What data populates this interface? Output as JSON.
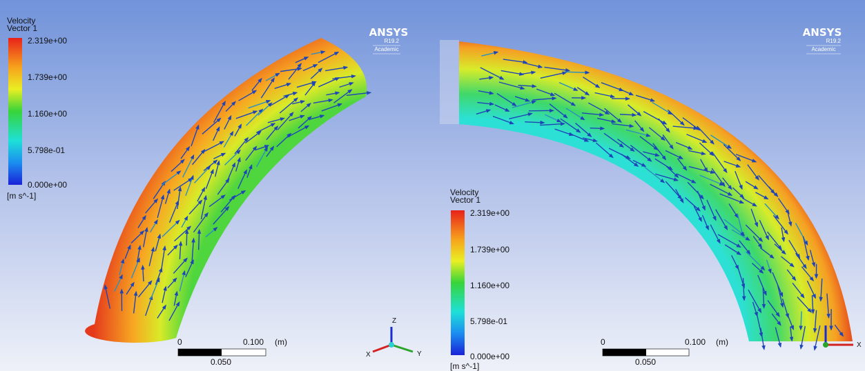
{
  "panels": [
    {
      "legend": {
        "title": [
          "Velocity",
          "Vector 1"
        ],
        "ticks": [
          "2.319e+00",
          "1.739e+00",
          "1.160e+00",
          "5.798e-01",
          "0.000e+00"
        ],
        "unit": "[m s^-1]"
      },
      "logo": {
        "name": "ANSYS",
        "version": "R19.2",
        "edition": "Academic"
      },
      "scale_bar": {
        "start": "0",
        "end": "0.100",
        "unit": "(m)",
        "mid": "0.050"
      },
      "triad": [
        "Z",
        "Y",
        "X"
      ]
    },
    {
      "legend": {
        "title": [
          "Velocity",
          "Vector 1"
        ],
        "ticks": [
          "2.319e+00",
          "1.739e+00",
          "1.160e+00",
          "5.798e-01",
          "0.000e+00"
        ],
        "unit": "[m s^-1]"
      },
      "logo": {
        "name": "ANSYS",
        "version": "R19.2",
        "edition": "Academic"
      },
      "scale_bar": {
        "start": "0",
        "end": "0.100",
        "unit": "(m)",
        "mid": "0.050"
      },
      "triad": [
        "X"
      ]
    }
  ]
}
